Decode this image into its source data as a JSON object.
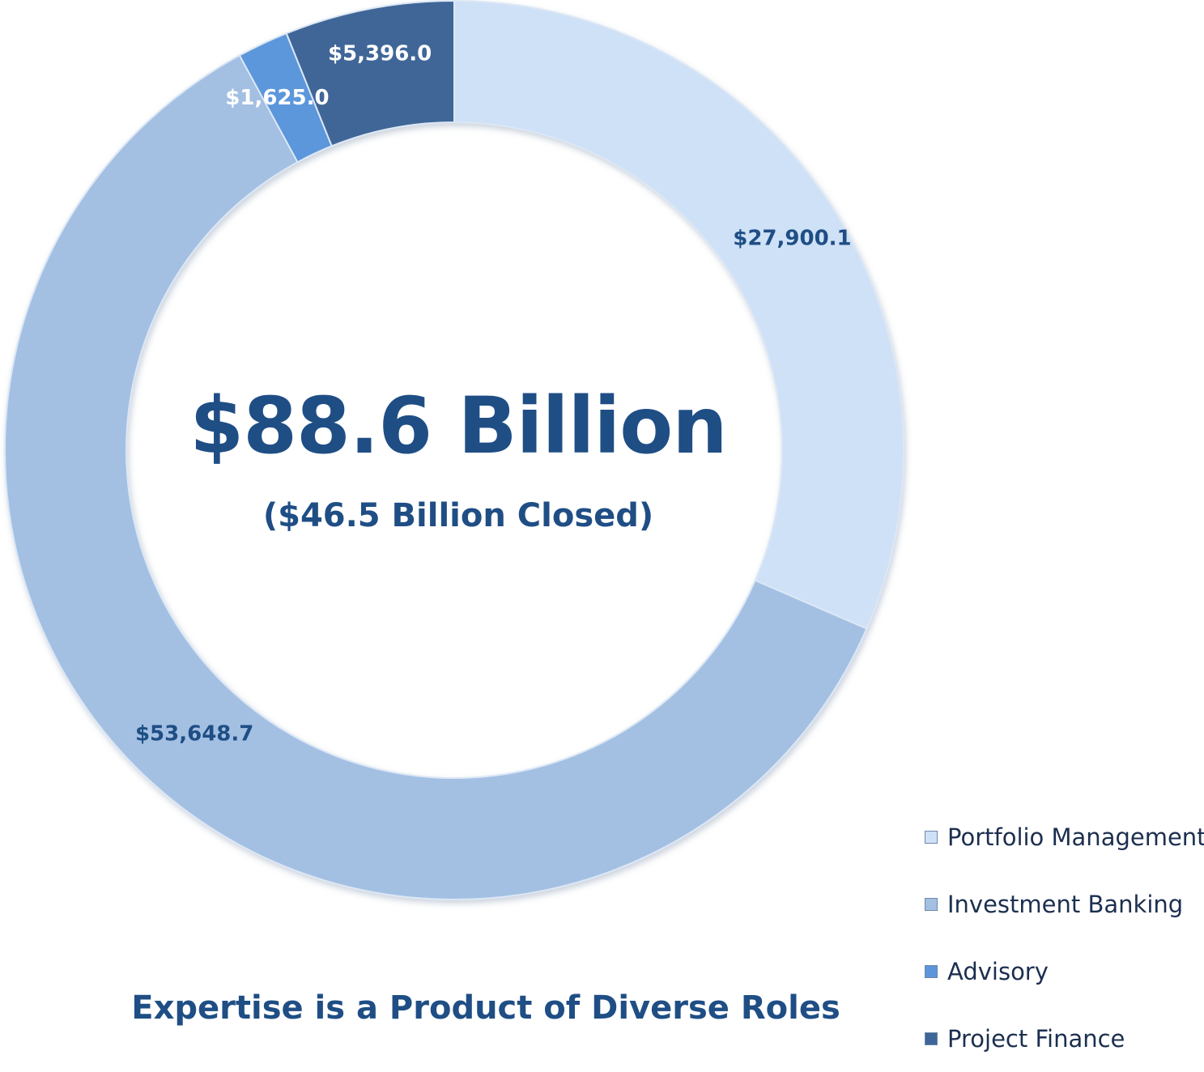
{
  "chart_data": {
    "type": "pie",
    "variant": "donut",
    "series": [
      {
        "name": "Portfolio Management",
        "value": 27900.1,
        "label": "$27,900.1",
        "color": "#cfe1f7"
      },
      {
        "name": "Investment Banking",
        "value": 53648.7,
        "label": "$53,648.7",
        "color": "#a3c0e3"
      },
      {
        "name": "Advisory",
        "value": 1625.0,
        "label": "$1,625.0",
        "color": "#5b96db"
      },
      {
        "name": "Project Finance",
        "value": 5396.0,
        "label": "$5,396.0",
        "color": "#3f6698"
      }
    ],
    "center_title": "$88.6 Billion",
    "center_subtitle": "($46.5 Billion Closed)",
    "title": "Expertise is a Product of Diverse Roles",
    "legend_position": "bottom-right"
  },
  "colors": {
    "title_text": "#1f4e85",
    "dark_label": "#1f4e85",
    "light_label": "#ffffff"
  }
}
